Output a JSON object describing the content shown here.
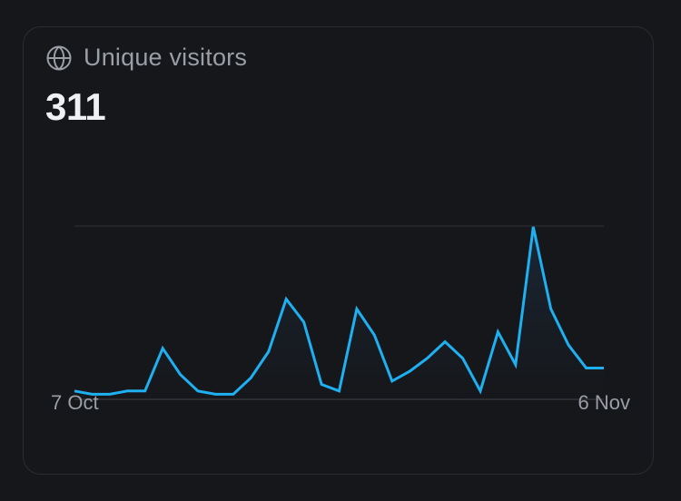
{
  "card": {
    "title": "Unique visitors",
    "icon": "globe-icon",
    "value": "311"
  },
  "colors": {
    "background": "#16171b",
    "border": "#2a2c31",
    "line": "#1eb0f0",
    "area_top": "#1b2a3a",
    "gridline": "#26282d",
    "title_text": "#9a9ea6",
    "value_text": "#eef0f3"
  },
  "chart_data": {
    "type": "area",
    "title": "Unique visitors",
    "total": 311,
    "xlabel": "",
    "ylabel": "",
    "x_tick_labels": [
      "7 Oct",
      "6 Nov"
    ],
    "x": [
      "7 Oct",
      "8 Oct",
      "9 Oct",
      "10 Oct",
      "11 Oct",
      "12 Oct",
      "13 Oct",
      "14 Oct",
      "15 Oct",
      "16 Oct",
      "17 Oct",
      "18 Oct",
      "19 Oct",
      "20 Oct",
      "21 Oct",
      "22 Oct",
      "23 Oct",
      "24 Oct",
      "25 Oct",
      "26 Oct",
      "27 Oct",
      "28 Oct",
      "29 Oct",
      "30 Oct",
      "31 Oct",
      "1 Nov",
      "2 Nov",
      "3 Nov",
      "4 Nov",
      "5 Nov",
      "6 Nov"
    ],
    "values": [
      2,
      1,
      1,
      2,
      2,
      15,
      7,
      2,
      1,
      1,
      6,
      14,
      30,
      23,
      4,
      2,
      27,
      19,
      5,
      8,
      12,
      17,
      12,
      2,
      20,
      10,
      52,
      27,
      16,
      9,
      9
    ],
    "ylim": [
      0,
      52
    ],
    "grid": true,
    "gridlines": [
      "top",
      "baseline"
    ],
    "legend": "none"
  }
}
